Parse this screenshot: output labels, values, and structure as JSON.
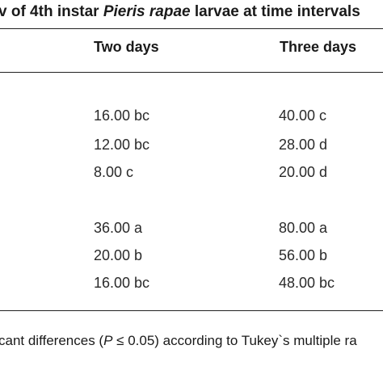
{
  "title": {
    "prefix": "v of 4th instar ",
    "species": "Pieris rapae",
    "suffix": " larvae at time intervals"
  },
  "table": {
    "columns": [
      "Two days",
      "Three days"
    ],
    "groups": [
      {
        "rows": [
          [
            "16.00 bc",
            "40.00 c"
          ],
          [
            "12.00 bc",
            "28.00 d"
          ],
          [
            "8.00 c",
            "20.00 d"
          ]
        ]
      },
      {
        "rows": [
          [
            "36.00 a",
            "80.00 a"
          ],
          [
            "20.00 b",
            "56.00 b"
          ],
          [
            "16.00 bc",
            "48.00 bc"
          ]
        ]
      }
    ]
  },
  "footnote": {
    "prefix": "cant differences (",
    "pvar": "P",
    "suffix": " ≤ 0.05) according to Tukey`s multiple ra"
  }
}
